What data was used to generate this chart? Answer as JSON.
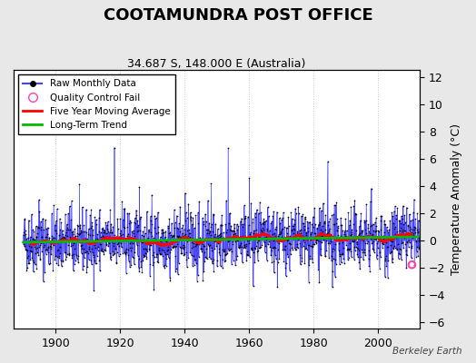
{
  "title": "COOTAMUNDRA POST OFFICE",
  "subtitle": "34.687 S, 148.000 E (Australia)",
  "ylabel": "Temperature Anomaly (°C)",
  "watermark": "Berkeley Earth",
  "xlim": [
    1887,
    2013
  ],
  "ylim": [
    -6.5,
    12.5
  ],
  "yticks": [
    -6,
    -4,
    -2,
    0,
    2,
    4,
    6,
    8,
    10,
    12
  ],
  "xticks": [
    1900,
    1920,
    1940,
    1960,
    1980,
    2000
  ],
  "start_year": 1890,
  "end_year": 2012,
  "seed": 42,
  "raw_color": "#4444ff",
  "moving_avg_color": "#ff0000",
  "trend_color": "#00bb00",
  "qc_fail_color": "#ff44aa",
  "bg_color": "#e8e8e8",
  "plot_bg_color": "#ffffff",
  "title_fontsize": 13,
  "subtitle_fontsize": 9,
  "ylabel_fontsize": 9,
  "tick_fontsize": 9
}
